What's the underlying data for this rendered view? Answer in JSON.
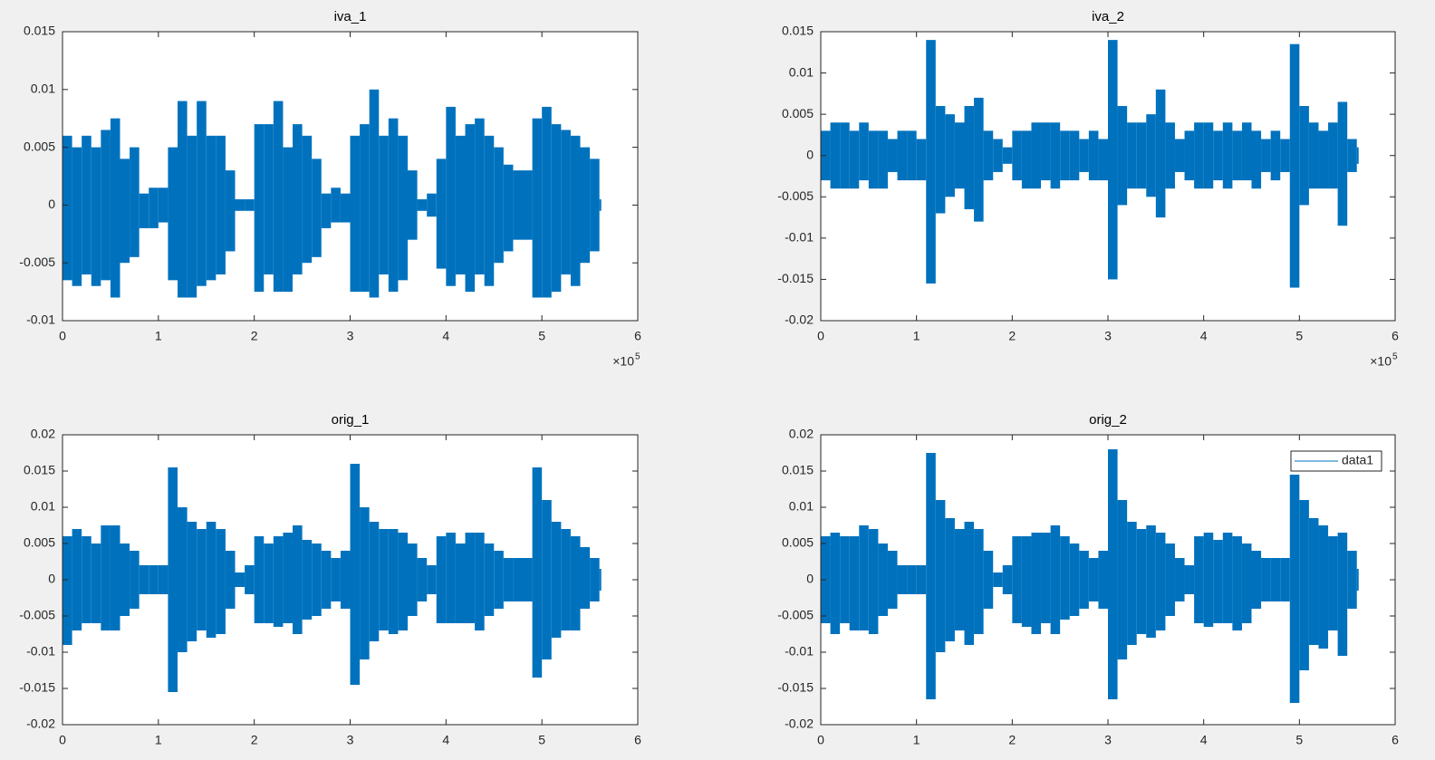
{
  "chart_data": [
    {
      "type": "area",
      "title": "iva_1",
      "x": [
        0,
        10000,
        20000,
        30000,
        40000,
        50000,
        60000,
        70000,
        80000,
        90000,
        100000,
        110000,
        120000,
        130000,
        140000,
        150000,
        160000,
        170000,
        180000,
        190000,
        200000,
        210000,
        220000,
        230000,
        240000,
        250000,
        260000,
        270000,
        280000,
        290000,
        300000,
        310000,
        320000,
        330000,
        340000,
        350000,
        360000,
        370000,
        380000,
        390000,
        400000,
        410000,
        420000,
        430000,
        440000,
        450000,
        460000,
        470000,
        480000,
        490000,
        500000,
        510000,
        520000,
        530000,
        540000,
        550000,
        560000
      ],
      "series": [
        {
          "color": "#0072bd",
          "upper": [
            0.006,
            0.005,
            0.006,
            0.005,
            0.0065,
            0.0075,
            0.004,
            0.005,
            0.001,
            0.0015,
            0.0015,
            0.005,
            0.009,
            0.006,
            0.009,
            0.006,
            0.006,
            0.003,
            0.0005,
            0.0005,
            0.007,
            0.007,
            0.009,
            0.005,
            0.007,
            0.006,
            0.004,
            0.001,
            0.0015,
            0.001,
            0.006,
            0.007,
            0.01,
            0.006,
            0.0075,
            0.006,
            0.003,
            0.0005,
            0.001,
            0.004,
            0.0085,
            0.006,
            0.007,
            0.0075,
            0.006,
            0.005,
            0.0035,
            0.003,
            0.003,
            0.0075,
            0.0085,
            0.007,
            0.0065,
            0.006,
            0.005,
            0.004,
            0.0005
          ],
          "lower": [
            -0.0065,
            -0.007,
            -0.006,
            -0.007,
            -0.0065,
            -0.008,
            -0.005,
            -0.0045,
            -0.002,
            -0.002,
            -0.0015,
            -0.0065,
            -0.008,
            -0.008,
            -0.007,
            -0.0065,
            -0.006,
            -0.004,
            -0.0005,
            -0.0005,
            -0.0075,
            -0.006,
            -0.0075,
            -0.0075,
            -0.006,
            -0.005,
            -0.0045,
            -0.002,
            -0.0015,
            -0.0015,
            -0.0075,
            -0.0075,
            -0.008,
            -0.006,
            -0.0075,
            -0.0065,
            -0.003,
            -0.0005,
            -0.001,
            -0.0055,
            -0.007,
            -0.006,
            -0.0075,
            -0.006,
            -0.007,
            -0.005,
            -0.004,
            -0.003,
            -0.003,
            -0.008,
            -0.008,
            -0.0075,
            -0.006,
            -0.007,
            -0.005,
            -0.004,
            -0.0005
          ]
        }
      ],
      "xlim": [
        0,
        600000
      ],
      "xticks": [
        0,
        {
          "value": 100000,
          "label": "1"
        },
        {
          "value": 200000,
          "label": "2"
        },
        {
          "value": 300000,
          "label": "3"
        },
        {
          "value": 400000,
          "label": "4"
        },
        {
          "value": 500000,
          "label": "5"
        },
        {
          "value": 600000,
          "label": "6"
        }
      ],
      "x_multiplier": "×10",
      "x_exponent": "5",
      "ylim": [
        -0.01,
        0.015
      ],
      "yticks": [
        -0.01,
        -0.005,
        0,
        0.005,
        0.01,
        0.015
      ]
    },
    {
      "type": "area",
      "title": "iva_2",
      "x": [
        0,
        10000,
        20000,
        30000,
        40000,
        50000,
        60000,
        70000,
        80000,
        90000,
        100000,
        110000,
        120000,
        130000,
        140000,
        150000,
        160000,
        170000,
        180000,
        190000,
        200000,
        210000,
        220000,
        230000,
        240000,
        250000,
        260000,
        270000,
        280000,
        290000,
        300000,
        310000,
        320000,
        330000,
        340000,
        350000,
        360000,
        370000,
        380000,
        390000,
        400000,
        410000,
        420000,
        430000,
        440000,
        450000,
        460000,
        470000,
        480000,
        490000,
        500000,
        510000,
        520000,
        530000,
        540000,
        550000,
        560000
      ],
      "series": [
        {
          "color": "#0072bd",
          "upper": [
            0.003,
            0.004,
            0.004,
            0.003,
            0.004,
            0.003,
            0.003,
            0.002,
            0.003,
            0.003,
            0.002,
            0.014,
            0.006,
            0.005,
            0.004,
            0.006,
            0.007,
            0.003,
            0.002,
            0.001,
            0.003,
            0.003,
            0.004,
            0.004,
            0.004,
            0.003,
            0.003,
            0.002,
            0.003,
            0.002,
            0.014,
            0.006,
            0.004,
            0.004,
            0.005,
            0.008,
            0.004,
            0.002,
            0.003,
            0.004,
            0.004,
            0.003,
            0.004,
            0.003,
            0.004,
            0.003,
            0.002,
            0.003,
            0.002,
            0.0135,
            0.006,
            0.004,
            0.003,
            0.004,
            0.0065,
            0.002,
            0.001
          ],
          "lower": [
            -0.003,
            -0.004,
            -0.004,
            -0.004,
            -0.003,
            -0.004,
            -0.004,
            -0.002,
            -0.003,
            -0.003,
            -0.003,
            -0.0155,
            -0.007,
            -0.005,
            -0.004,
            -0.0065,
            -0.008,
            -0.003,
            -0.002,
            -0.001,
            -0.003,
            -0.004,
            -0.004,
            -0.003,
            -0.004,
            -0.003,
            -0.003,
            -0.002,
            -0.003,
            -0.003,
            -0.015,
            -0.006,
            -0.004,
            -0.004,
            -0.005,
            -0.0075,
            -0.004,
            -0.002,
            -0.003,
            -0.004,
            -0.004,
            -0.003,
            -0.004,
            -0.003,
            -0.003,
            -0.004,
            -0.002,
            -0.003,
            -0.002,
            -0.016,
            -0.006,
            -0.004,
            -0.004,
            -0.004,
            -0.0085,
            -0.002,
            -0.001
          ]
        }
      ],
      "xlim": [
        0,
        600000
      ],
      "xticks": [
        0,
        {
          "value": 100000,
          "label": "1"
        },
        {
          "value": 200000,
          "label": "2"
        },
        {
          "value": 300000,
          "label": "3"
        },
        {
          "value": 400000,
          "label": "4"
        },
        {
          "value": 500000,
          "label": "5"
        },
        {
          "value": 600000,
          "label": "6"
        }
      ],
      "x_multiplier": "×10",
      "x_exponent": "5",
      "ylim": [
        -0.02,
        0.015
      ],
      "yticks": [
        -0.02,
        -0.015,
        -0.01,
        -0.005,
        0,
        0.005,
        0.01,
        0.015
      ]
    },
    {
      "type": "area",
      "title": "orig_1",
      "x": [
        0,
        10000,
        20000,
        30000,
        40000,
        50000,
        60000,
        70000,
        80000,
        90000,
        100000,
        110000,
        120000,
        130000,
        140000,
        150000,
        160000,
        170000,
        180000,
        190000,
        200000,
        210000,
        220000,
        230000,
        240000,
        250000,
        260000,
        270000,
        280000,
        290000,
        300000,
        310000,
        320000,
        330000,
        340000,
        350000,
        360000,
        370000,
        380000,
        390000,
        400000,
        410000,
        420000,
        430000,
        440000,
        450000,
        460000,
        470000,
        480000,
        490000,
        500000,
        510000,
        520000,
        530000,
        540000,
        550000,
        560000
      ],
      "series": [
        {
          "color": "#0072bd",
          "upper": [
            0.006,
            0.007,
            0.006,
            0.005,
            0.0075,
            0.0075,
            0.005,
            0.004,
            0.002,
            0.002,
            0.002,
            0.0155,
            0.01,
            0.008,
            0.007,
            0.008,
            0.007,
            0.004,
            0.001,
            0.002,
            0.006,
            0.005,
            0.006,
            0.0065,
            0.0075,
            0.0055,
            0.005,
            0.004,
            0.003,
            0.004,
            0.016,
            0.01,
            0.008,
            0.007,
            0.007,
            0.0065,
            0.005,
            0.003,
            0.002,
            0.006,
            0.0065,
            0.005,
            0.0065,
            0.0065,
            0.005,
            0.004,
            0.003,
            0.003,
            0.003,
            0.0155,
            0.011,
            0.008,
            0.007,
            0.006,
            0.0045,
            0.003,
            0.0015
          ],
          "lower": [
            -0.009,
            -0.007,
            -0.006,
            -0.006,
            -0.007,
            -0.007,
            -0.005,
            -0.004,
            -0.002,
            -0.002,
            -0.002,
            -0.0155,
            -0.01,
            -0.0085,
            -0.007,
            -0.008,
            -0.0075,
            -0.004,
            -0.001,
            -0.002,
            -0.006,
            -0.006,
            -0.0065,
            -0.006,
            -0.0075,
            -0.0055,
            -0.005,
            -0.004,
            -0.003,
            -0.004,
            -0.0145,
            -0.011,
            -0.0085,
            -0.007,
            -0.0075,
            -0.007,
            -0.005,
            -0.003,
            -0.002,
            -0.006,
            -0.006,
            -0.006,
            -0.006,
            -0.007,
            -0.005,
            -0.004,
            -0.003,
            -0.003,
            -0.003,
            -0.0135,
            -0.011,
            -0.008,
            -0.007,
            -0.007,
            -0.004,
            -0.003,
            -0.0015
          ]
        }
      ],
      "xlim": [
        0,
        600000
      ],
      "xticks": [
        0,
        {
          "value": 100000,
          "label": "1"
        },
        {
          "value": 200000,
          "label": "2"
        },
        {
          "value": 300000,
          "label": "3"
        },
        {
          "value": 400000,
          "label": "4"
        },
        {
          "value": 500000,
          "label": "5"
        },
        {
          "value": 600000,
          "label": "6"
        }
      ],
      "ylim": [
        -0.02,
        0.02
      ],
      "yticks": [
        -0.02,
        -0.015,
        -0.01,
        -0.005,
        0,
        0.005,
        0.01,
        0.015,
        0.02
      ]
    },
    {
      "type": "area",
      "title": "orig_2",
      "legend": "northeast",
      "x": [
        0,
        10000,
        20000,
        30000,
        40000,
        50000,
        60000,
        70000,
        80000,
        90000,
        100000,
        110000,
        120000,
        130000,
        140000,
        150000,
        160000,
        170000,
        180000,
        190000,
        200000,
        210000,
        220000,
        230000,
        240000,
        250000,
        260000,
        270000,
        280000,
        290000,
        300000,
        310000,
        320000,
        330000,
        340000,
        350000,
        360000,
        370000,
        380000,
        390000,
        400000,
        410000,
        420000,
        430000,
        440000,
        450000,
        460000,
        470000,
        480000,
        490000,
        500000,
        510000,
        520000,
        530000,
        540000,
        550000,
        560000
      ],
      "series": [
        {
          "name": "data1",
          "color": "#0072bd",
          "upper": [
            0.006,
            0.0065,
            0.006,
            0.006,
            0.0075,
            0.007,
            0.005,
            0.004,
            0.002,
            0.002,
            0.002,
            0.0175,
            0.011,
            0.0085,
            0.007,
            0.008,
            0.007,
            0.004,
            0.001,
            0.002,
            0.006,
            0.006,
            0.0065,
            0.0065,
            0.0075,
            0.006,
            0.005,
            0.004,
            0.003,
            0.004,
            0.018,
            0.011,
            0.008,
            0.007,
            0.0075,
            0.0065,
            0.005,
            0.003,
            0.002,
            0.006,
            0.0065,
            0.0055,
            0.0065,
            0.006,
            0.005,
            0.004,
            0.003,
            0.003,
            0.003,
            0.0145,
            0.011,
            0.0085,
            0.0075,
            0.006,
            0.0065,
            0.004,
            0.0015
          ],
          "lower": [
            -0.006,
            -0.0075,
            -0.006,
            -0.007,
            -0.007,
            -0.0075,
            -0.005,
            -0.004,
            -0.002,
            -0.002,
            -0.002,
            -0.0165,
            -0.01,
            -0.0085,
            -0.007,
            -0.009,
            -0.0075,
            -0.004,
            -0.001,
            -0.002,
            -0.006,
            -0.0065,
            -0.0075,
            -0.006,
            -0.0075,
            -0.0055,
            -0.005,
            -0.004,
            -0.003,
            -0.004,
            -0.0165,
            -0.011,
            -0.009,
            -0.0075,
            -0.008,
            -0.007,
            -0.005,
            -0.003,
            -0.002,
            -0.006,
            -0.0065,
            -0.006,
            -0.006,
            -0.007,
            -0.006,
            -0.004,
            -0.003,
            -0.003,
            -0.003,
            -0.017,
            -0.0125,
            -0.009,
            -0.0095,
            -0.007,
            -0.0105,
            -0.004,
            -0.0015
          ]
        }
      ],
      "xlim": [
        0,
        600000
      ],
      "xticks": [
        0,
        {
          "value": 100000,
          "label": "1"
        },
        {
          "value": 200000,
          "label": "2"
        },
        {
          "value": 300000,
          "label": "3"
        },
        {
          "value": 400000,
          "label": "4"
        },
        {
          "value": 500000,
          "label": "5"
        },
        {
          "value": 600000,
          "label": "6"
        }
      ],
      "ylim": [
        -0.02,
        0.02
      ],
      "yticks": [
        -0.02,
        -0.015,
        -0.01,
        -0.005,
        0,
        0.005,
        0.01,
        0.015,
        0.02
      ]
    }
  ]
}
